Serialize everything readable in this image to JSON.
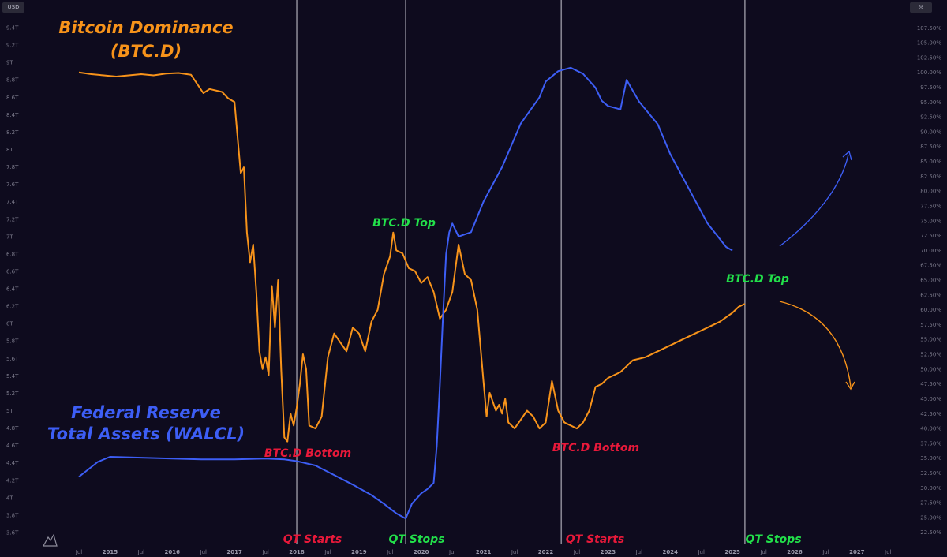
{
  "header": {
    "left_badge": "USD",
    "right_badge": "%"
  },
  "chart_data": {
    "type": "line",
    "left_axis": {
      "unit": "USD",
      "ylim": [
        3.5,
        9.5
      ],
      "tick_labels": [
        "9.4T",
        "9.2T",
        "9T",
        "8.8T",
        "8.6T",
        "8.4T",
        "8.2T",
        "8T",
        "7.8T",
        "7.6T",
        "7.4T",
        "7.2T",
        "7T",
        "6.8T",
        "6.6T",
        "6.4T",
        "6.2T",
        "6T",
        "5.8T",
        "5.6T",
        "5.4T",
        "5.2T",
        "5T",
        "4.8T",
        "4.6T",
        "4.4T",
        "4.2T",
        "4T",
        "3.8T",
        "3.6T"
      ],
      "tick_values": [
        9.4,
        9.2,
        9.0,
        8.8,
        8.6,
        8.4,
        8.2,
        8.0,
        7.8,
        7.6,
        7.4,
        7.2,
        7.0,
        6.8,
        6.6,
        6.4,
        6.2,
        6.0,
        5.8,
        5.6,
        5.4,
        5.2,
        5.0,
        4.8,
        4.6,
        4.4,
        4.2,
        4.0,
        3.8,
        3.6
      ]
    },
    "right_axis": {
      "unit": "%",
      "ylim": [
        21.0,
        109.0
      ],
      "tick_labels": [
        "107.50%",
        "105.00%",
        "102.50%",
        "100.00%",
        "97.50%",
        "95.00%",
        "92.50%",
        "90.00%",
        "87.50%",
        "85.00%",
        "82.50%",
        "80.00%",
        "77.50%",
        "75.00%",
        "72.50%",
        "70.00%",
        "67.50%",
        "65.00%",
        "62.50%",
        "60.00%",
        "57.50%",
        "55.00%",
        "52.50%",
        "50.00%",
        "47.50%",
        "45.00%",
        "42.50%",
        "40.00%",
        "37.50%",
        "35.00%",
        "32.50%",
        "30.00%",
        "27.50%",
        "25.00%",
        "22.50%"
      ],
      "tick_values": [
        107.5,
        105,
        102.5,
        100,
        97.5,
        95,
        92.5,
        90,
        87.5,
        85,
        82.5,
        80,
        77.5,
        75,
        72.5,
        70,
        67.5,
        65,
        62.5,
        60,
        57.5,
        55,
        52.5,
        50,
        47.5,
        45,
        42.5,
        40,
        37.5,
        35,
        32.5,
        30,
        27.5,
        25,
        22.5
      ]
    },
    "xlim": [
      2014.5,
      2027.75
    ],
    "x_ticks": [
      {
        "label": "Jul",
        "x": 2014.5
      },
      {
        "label": "2015",
        "x": 2015.0,
        "year": true
      },
      {
        "label": "Jul",
        "x": 2015.5
      },
      {
        "label": "2016",
        "x": 2016.0,
        "year": true
      },
      {
        "label": "Jul",
        "x": 2016.5
      },
      {
        "label": "2017",
        "x": 2017.0,
        "year": true
      },
      {
        "label": "Jul",
        "x": 2017.5
      },
      {
        "label": "2018",
        "x": 2018.0,
        "year": true
      },
      {
        "label": "Jul",
        "x": 2018.5
      },
      {
        "label": "2019",
        "x": 2019.0,
        "year": true
      },
      {
        "label": "Jul",
        "x": 2019.5
      },
      {
        "label": "2020",
        "x": 2020.0,
        "year": true
      },
      {
        "label": "Jul",
        "x": 2020.5
      },
      {
        "label": "2021",
        "x": 2021.0,
        "year": true
      },
      {
        "label": "Jul",
        "x": 2021.5
      },
      {
        "label": "2022",
        "x": 2022.0,
        "year": true
      },
      {
        "label": "Jul",
        "x": 2022.5
      },
      {
        "label": "2023",
        "x": 2023.0,
        "year": true
      },
      {
        "label": "Jul",
        "x": 2023.5
      },
      {
        "label": "2024",
        "x": 2024.0,
        "year": true
      },
      {
        "label": "Jul",
        "x": 2024.5
      },
      {
        "label": "2025",
        "x": 2025.0,
        "year": true
      },
      {
        "label": "Jul",
        "x": 2025.5
      },
      {
        "label": "2026",
        "x": 2026.0,
        "year": true
      },
      {
        "label": "Jul",
        "x": 2026.5
      },
      {
        "label": "2027",
        "x": 2027.0,
        "year": true
      },
      {
        "label": "Jul",
        "x": 2027.5
      }
    ],
    "series": [
      {
        "name": "Bitcoin Dominance (BTC.D)",
        "axis": "right",
        "color": "#f7931a",
        "x": [
          2014.5,
          2014.7,
          2014.9,
          2015.1,
          2015.3,
          2015.5,
          2015.7,
          2015.9,
          2016.1,
          2016.3,
          2016.5,
          2016.6,
          2016.8,
          2016.9,
          2017.0,
          2017.05,
          2017.1,
          2017.15,
          2017.2,
          2017.25,
          2017.3,
          2017.35,
          2017.4,
          2017.45,
          2017.5,
          2017.55,
          2017.6,
          2017.65,
          2017.7,
          2017.75,
          2017.8,
          2017.85,
          2017.9,
          2017.95,
          2018.0,
          2018.05,
          2018.1,
          2018.15,
          2018.2,
          2018.3,
          2018.4,
          2018.5,
          2018.6,
          2018.7,
          2018.8,
          2018.9,
          2019.0,
          2019.1,
          2019.2,
          2019.3,
          2019.4,
          2019.5,
          2019.55,
          2019.6,
          2019.7,
          2019.8,
          2019.9,
          2020.0,
          2020.1,
          2020.2,
          2020.3,
          2020.4,
          2020.5,
          2020.6,
          2020.7,
          2020.8,
          2020.9,
          2021.0,
          2021.05,
          2021.1,
          2021.2,
          2021.25,
          2021.3,
          2021.35,
          2021.4,
          2021.5,
          2021.6,
          2021.7,
          2021.8,
          2021.9,
          2022.0,
          2022.1,
          2022.2,
          2022.3,
          2022.4,
          2022.5,
          2022.6,
          2022.7,
          2022.8,
          2022.9,
          2023.0,
          2023.2,
          2023.4,
          2023.6,
          2023.8,
          2024.0,
          2024.2,
          2024.4,
          2024.6,
          2024.8,
          2025.0,
          2025.1,
          2025.2
        ],
        "values": [
          100,
          99.7,
          99.5,
          99.3,
          99.5,
          99.7,
          99.5,
          99.8,
          99.9,
          99.6,
          96.5,
          97.2,
          96.7,
          95.6,
          95.0,
          89.0,
          83.0,
          84.0,
          73.0,
          68.0,
          71.0,
          63.0,
          53.0,
          50.0,
          52.0,
          49.0,
          64.0,
          57.0,
          65.0,
          50.0,
          38.5,
          37.8,
          42.5,
          40.5,
          43.5,
          47.5,
          52.5,
          50.0,
          40.5,
          40.0,
          42.0,
          52.0,
          56.0,
          54.5,
          53.0,
          57.0,
          56.0,
          53.0,
          58.0,
          60.0,
          66.0,
          69.0,
          73.0,
          70.0,
          69.5,
          67.0,
          66.5,
          64.5,
          65.5,
          63.0,
          58.5,
          60.0,
          63.0,
          71.0,
          66.0,
          65.0,
          60.0,
          48.0,
          42.0,
          46.0,
          43.0,
          44.0,
          42.5,
          45.0,
          41.0,
          40.0,
          41.5,
          43.0,
          42.0,
          40.0,
          41.0,
          48.0,
          43.0,
          41.0,
          40.5,
          40.0,
          41.0,
          43.0,
          47.0,
          47.5,
          48.5,
          49.5,
          51.5,
          52.0,
          53.0,
          54.0,
          55.0,
          56.0,
          57.0,
          58.0,
          59.5,
          60.5,
          61.0
        ]
      },
      {
        "name": "Federal Reserve Total Assets (WALCL)",
        "axis": "left",
        "color": "#3d5ef5",
        "x": [
          2014.5,
          2014.8,
          2015.0,
          2015.5,
          2016.0,
          2016.5,
          2017.0,
          2017.5,
          2017.8,
          2018.0,
          2018.3,
          2018.6,
          2018.9,
          2019.2,
          2019.4,
          2019.6,
          2019.7,
          2019.75,
          2019.85,
          2020.0,
          2020.1,
          2020.2,
          2020.25,
          2020.3,
          2020.35,
          2020.4,
          2020.45,
          2020.5,
          2020.6,
          2020.8,
          2021.0,
          2021.3,
          2021.6,
          2021.9,
          2022.0,
          2022.2,
          2022.4,
          2022.6,
          2022.8,
          2022.9,
          2023.0,
          2023.2,
          2023.3,
          2023.5,
          2023.8,
          2024.0,
          2024.3,
          2024.6,
          2024.9,
          2025.0
        ],
        "values": [
          4.24,
          4.41,
          4.47,
          4.46,
          4.45,
          4.44,
          4.44,
          4.45,
          4.44,
          4.42,
          4.37,
          4.26,
          4.15,
          4.03,
          3.93,
          3.82,
          3.78,
          3.76,
          3.93,
          4.05,
          4.1,
          4.17,
          4.6,
          5.3,
          6.1,
          6.8,
          7.05,
          7.15,
          7.0,
          7.05,
          7.4,
          7.8,
          8.3,
          8.6,
          8.78,
          8.9,
          8.94,
          8.87,
          8.71,
          8.56,
          8.5,
          8.46,
          8.8,
          8.55,
          8.29,
          7.95,
          7.55,
          7.15,
          6.88,
          6.84
        ]
      }
    ],
    "vertical_lines": [
      2018.0,
      2019.75,
      2022.25,
      2025.2
    ],
    "annotations": [
      {
        "text": "Bitcoin Dominance",
        "color": "#f7931a",
        "key": "title_btcd_1"
      },
      {
        "text": "(BTC.D)",
        "color": "#f7931a",
        "key": "title_btcd_2"
      },
      {
        "text": "Federal Reserve",
        "color": "#3d5ef5",
        "key": "title_walcl_1"
      },
      {
        "text": "Total Assets (WALCL)",
        "color": "#3d5ef5",
        "key": "title_walcl_2"
      },
      {
        "text": "BTC.D Top",
        "color": "#22e04a",
        "key": "top_1"
      },
      {
        "text": "BTC.D Top",
        "color": "#22e04a",
        "key": "top_2"
      },
      {
        "text": "BTC.D Bottom",
        "color": "#e8193a",
        "key": "bottom_1"
      },
      {
        "text": "BTC.D Bottom",
        "color": "#e8193a",
        "key": "bottom_2"
      },
      {
        "text": "QT Starts",
        "color": "#e8193a",
        "key": "qt_starts_1"
      },
      {
        "text": "QT Stops",
        "color": "#22e04a",
        "key": "qt_stops_1"
      },
      {
        "text": "QT Starts",
        "color": "#e8193a",
        "key": "qt_starts_2"
      },
      {
        "text": "QT Stops",
        "color": "#22e04a",
        "key": "qt_stops_2"
      }
    ],
    "grid": false,
    "background": "#0e0b1e"
  }
}
